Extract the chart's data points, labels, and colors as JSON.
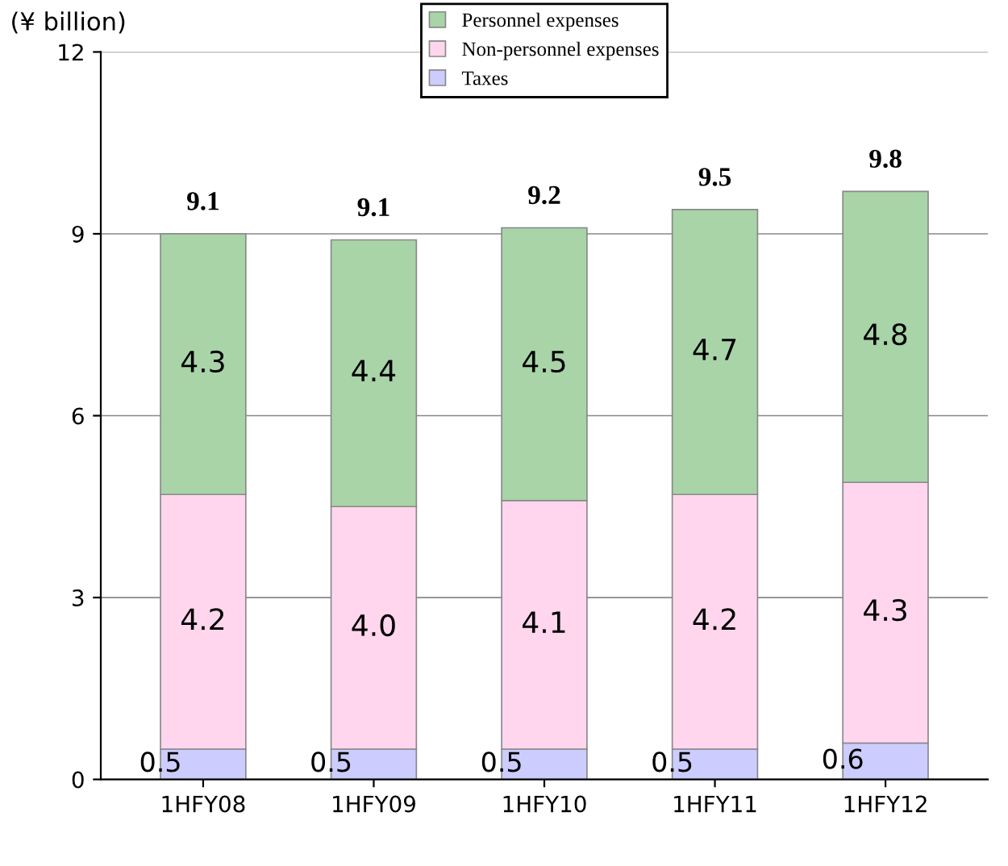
{
  "chart_data": {
    "type": "bar",
    "stacked": true,
    "ylabel": "(¥ billion)",
    "categories": [
      "1HFY08",
      "1HFY09",
      "1HFY10",
      "1HFY11",
      "1HFY12"
    ],
    "series": [
      {
        "name": "Taxes",
        "color": "#ccccff",
        "values": [
          0.5,
          0.5,
          0.5,
          0.5,
          0.6
        ],
        "value_labels": [
          "0.5",
          "0.5",
          "0.5",
          "0.5",
          "0.6"
        ]
      },
      {
        "name": "Non-personnel expenses",
        "color": "#ffd6ee",
        "values": [
          4.2,
          4.0,
          4.1,
          4.2,
          4.3
        ],
        "value_labels": [
          "4.2",
          "4.0",
          "4.1",
          "4.2",
          "4.3"
        ]
      },
      {
        "name": "Personnel expenses",
        "color": "#a8d4a8",
        "values": [
          4.3,
          4.4,
          4.5,
          4.7,
          4.8
        ],
        "value_labels": [
          "4.3",
          "4.4",
          "4.5",
          "4.7",
          "4.8"
        ]
      }
    ],
    "totals": [
      "9.1",
      "9.1",
      "9.2",
      "9.5",
      "9.8"
    ],
    "ylim": [
      0,
      12
    ],
    "yticks": [
      0,
      3,
      6,
      9,
      12
    ],
    "grid": "y",
    "legend": "top"
  }
}
